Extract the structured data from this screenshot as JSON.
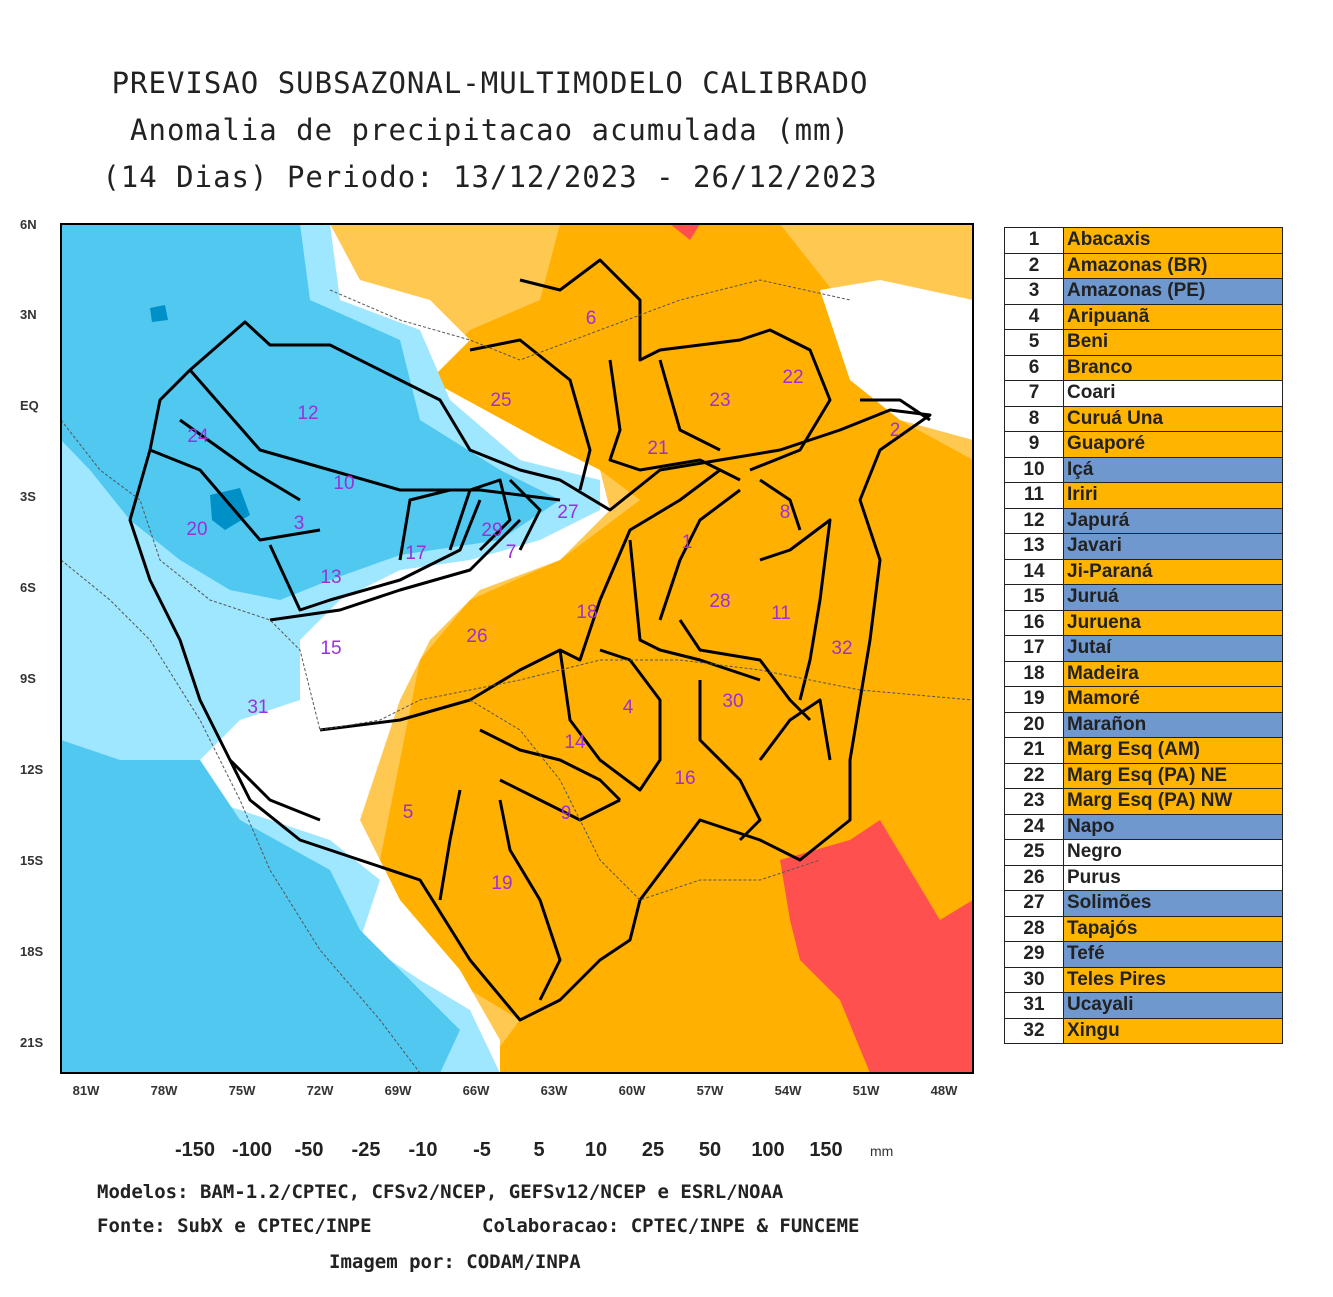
{
  "title": {
    "line1": "PREVISAO SUBSAZONAL-MULTIMODELO CALIBRADO",
    "line2": "Anomalia de precipitacao acumulada (mm)",
    "line3": "(14 Dias) Periodo: 13/12/2023 - 26/12/2023"
  },
  "map": {
    "lat_labels": [
      "6N",
      "3N",
      "EQ",
      "3S",
      "6S",
      "9S",
      "12S",
      "15S",
      "18S",
      "21S"
    ],
    "lon_labels": [
      "81W",
      "78W",
      "75W",
      "72W",
      "69W",
      "66W",
      "63W",
      "60W",
      "57W",
      "54W",
      "51W",
      "48W"
    ],
    "basin_numbers": [
      "1",
      "2",
      "3",
      "4",
      "5",
      "6",
      "7",
      "8",
      "9",
      "10",
      "11",
      "12",
      "13",
      "14",
      "15",
      "16",
      "17",
      "18",
      "19",
      "20",
      "21",
      "22",
      "23",
      "24",
      "25",
      "26",
      "27",
      "28",
      "29",
      "30",
      "31",
      "32"
    ]
  },
  "basins": [
    {
      "num": "1",
      "name": "Abacaxis",
      "status": "dry"
    },
    {
      "num": "2",
      "name": "Amazonas (BR)",
      "status": "dry"
    },
    {
      "num": "3",
      "name": "Amazonas (PE)",
      "status": "wet"
    },
    {
      "num": "4",
      "name": "Aripuanã",
      "status": "dry"
    },
    {
      "num": "5",
      "name": "Beni",
      "status": "dry"
    },
    {
      "num": "6",
      "name": "Branco",
      "status": "dry"
    },
    {
      "num": "7",
      "name": "Coari",
      "status": "neutral"
    },
    {
      "num": "8",
      "name": "Curuá Una",
      "status": "dry"
    },
    {
      "num": "9",
      "name": "Guaporé",
      "status": "dry"
    },
    {
      "num": "10",
      "name": "Içá",
      "status": "wet"
    },
    {
      "num": "11",
      "name": "Iriri",
      "status": "dry"
    },
    {
      "num": "12",
      "name": "Japurá",
      "status": "wet"
    },
    {
      "num": "13",
      "name": "Javari",
      "status": "wet"
    },
    {
      "num": "14",
      "name": "Ji-Paraná",
      "status": "dry"
    },
    {
      "num": "15",
      "name": "Juruá",
      "status": "wet"
    },
    {
      "num": "16",
      "name": "Juruena",
      "status": "dry"
    },
    {
      "num": "17",
      "name": "Jutaí",
      "status": "wet"
    },
    {
      "num": "18",
      "name": "Madeira",
      "status": "dry"
    },
    {
      "num": "19",
      "name": "Mamoré",
      "status": "dry"
    },
    {
      "num": "20",
      "name": "Marañon",
      "status": "wet"
    },
    {
      "num": "21",
      "name": "Marg Esq (AM)",
      "status": "dry"
    },
    {
      "num": "22",
      "name": "Marg Esq (PA) NE",
      "status": "dry"
    },
    {
      "num": "23",
      "name": "Marg Esq (PA) NW",
      "status": "dry"
    },
    {
      "num": "24",
      "name": "Napo",
      "status": "wet"
    },
    {
      "num": "25",
      "name": "Negro",
      "status": "neutral"
    },
    {
      "num": "26",
      "name": "Purus",
      "status": "neutral"
    },
    {
      "num": "27",
      "name": "Solimões",
      "status": "wet"
    },
    {
      "num": "28",
      "name": "Tapajós",
      "status": "dry"
    },
    {
      "num": "29",
      "name": "Tefé",
      "status": "wet"
    },
    {
      "num": "30",
      "name": "Teles Pires",
      "status": "dry"
    },
    {
      "num": "31",
      "name": "Ucayali",
      "status": "wet"
    },
    {
      "num": "32",
      "name": "Xingu",
      "status": "dry"
    }
  ],
  "status_colors": {
    "dry": "#ffb400",
    "wet": "#6f98cf",
    "neutral": "#ffffff"
  },
  "colorbar": {
    "labels": [
      "-150",
      "-100",
      "-50",
      "-25",
      "-10",
      "-5",
      "5",
      "10",
      "25",
      "50",
      "100",
      "150"
    ],
    "unit": "mm",
    "colors": [
      "#c00000",
      "#ff0000",
      "#ff5050",
      "#ff9900",
      "#ffb000",
      "#ffc850",
      "#ffe0a0",
      "#ffffff",
      "#9fe6ff",
      "#50c8f0",
      "#00b4ff",
      "#0090c8",
      "#006c98",
      "#004c70"
    ]
  },
  "credits": {
    "line1": "Modelos: BAM-1.2/CPTEC, CFSv2/NCEP, GEFSv12/NCEP e ESRL/NOAA",
    "line2a": "Fonte: SubX e CPTEC/INPE",
    "line2b": "Colaboracao: CPTEC/INPE & FUNCEME",
    "line3": "Imagem por: CODAM/INPA"
  }
}
